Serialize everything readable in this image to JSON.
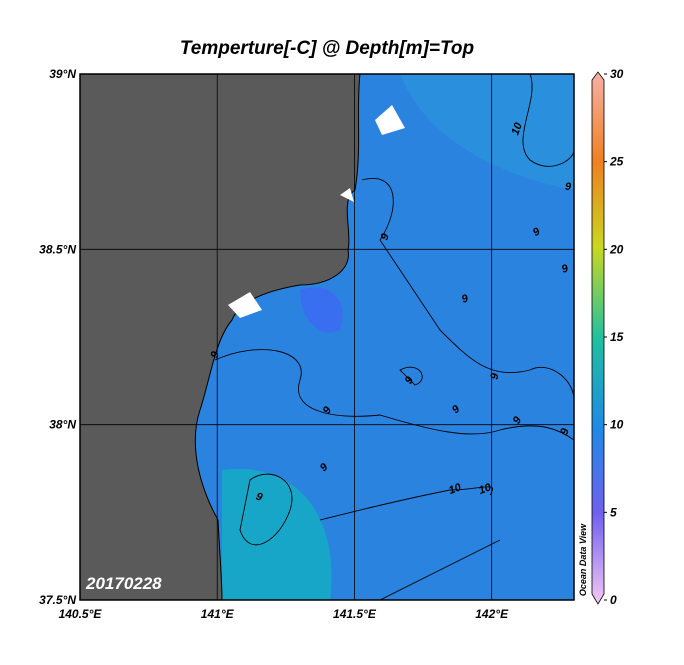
{
  "title": "Temperture[-C] @ Depth[m]=Top",
  "map": {
    "xlim": [
      140.5,
      142.3
    ],
    "ylim": [
      37.5,
      39
    ],
    "xticks": [
      {
        "value": 140.5,
        "label": "140.5°E"
      },
      {
        "value": 141,
        "label": "141°E"
      },
      {
        "value": 141.5,
        "label": "141.5°E"
      },
      {
        "value": 142,
        "label": "142°E"
      }
    ],
    "yticks": [
      {
        "value": 37.5,
        "label": "37.5°N"
      },
      {
        "value": 38,
        "label": "38°N"
      },
      {
        "value": 38.5,
        "label": "38.5°N"
      },
      {
        "value": 39,
        "label": "39°N"
      }
    ],
    "grid": true
  },
  "colorbar": {
    "range": [
      0,
      30
    ],
    "ticks": [
      0,
      5,
      10,
      15,
      20,
      25,
      30
    ]
  },
  "contour_labels": [
    "10",
    "9",
    "9",
    "9",
    "9",
    "9",
    "9",
    "9",
    "9",
    "9",
    "9",
    "9",
    "9",
    "9",
    "10",
    "10",
    "9"
  ],
  "date_stamp": "20170228",
  "watermark": "Ocean Data View"
}
